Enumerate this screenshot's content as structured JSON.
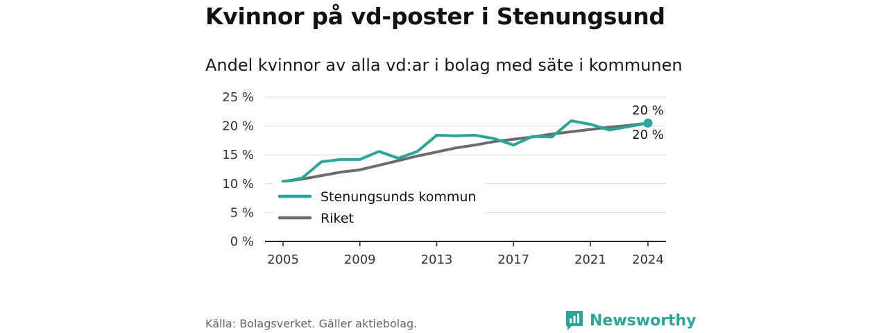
{
  "header": {
    "title": "Kvinnor på vd-poster i Stenungsund",
    "subtitle": "Andel kvinnor av alla vd:ar i bolag med säte i kommunen"
  },
  "chart_data": {
    "type": "line",
    "x": [
      2005,
      2006,
      2007,
      2008,
      2009,
      2010,
      2011,
      2012,
      2013,
      2014,
      2015,
      2016,
      2017,
      2018,
      2019,
      2020,
      2021,
      2022,
      2023,
      2024
    ],
    "x_ticks": [
      "2005",
      "2009",
      "2013",
      "2017",
      "2021",
      "2024"
    ],
    "y_ticks": [
      "0 %",
      "5 %",
      "10 %",
      "15 %",
      "20 %",
      "25 %"
    ],
    "ylim": [
      0,
      25
    ],
    "grid": true,
    "legend_position": "bottom-left",
    "series": [
      {
        "name": "Stenungsunds kommun",
        "color": "#2aa59a",
        "values": [
          10.3,
          11.0,
          13.8,
          14.2,
          14.2,
          15.6,
          14.4,
          15.6,
          18.4,
          18.3,
          18.4,
          17.8,
          16.7,
          18.2,
          18.1,
          20.9,
          20.3,
          19.3,
          19.9,
          20.5
        ]
      },
      {
        "name": "Riket",
        "color": "#6b6b70",
        "values": [
          10.4,
          10.8,
          11.4,
          12.0,
          12.4,
          13.2,
          14.0,
          14.8,
          15.5,
          16.2,
          16.7,
          17.3,
          17.7,
          18.1,
          18.6,
          19.0,
          19.4,
          19.8,
          20.1,
          20.5
        ]
      }
    ],
    "end_labels": [
      "20 %",
      "20 %"
    ]
  },
  "footer": {
    "source": "Källa: Bolagsverket. Gäller aktiebolag.",
    "brand": "Newsworthy",
    "brand_color": "#2aa59a",
    "brand_icon": "bar-chart-logo-icon"
  }
}
